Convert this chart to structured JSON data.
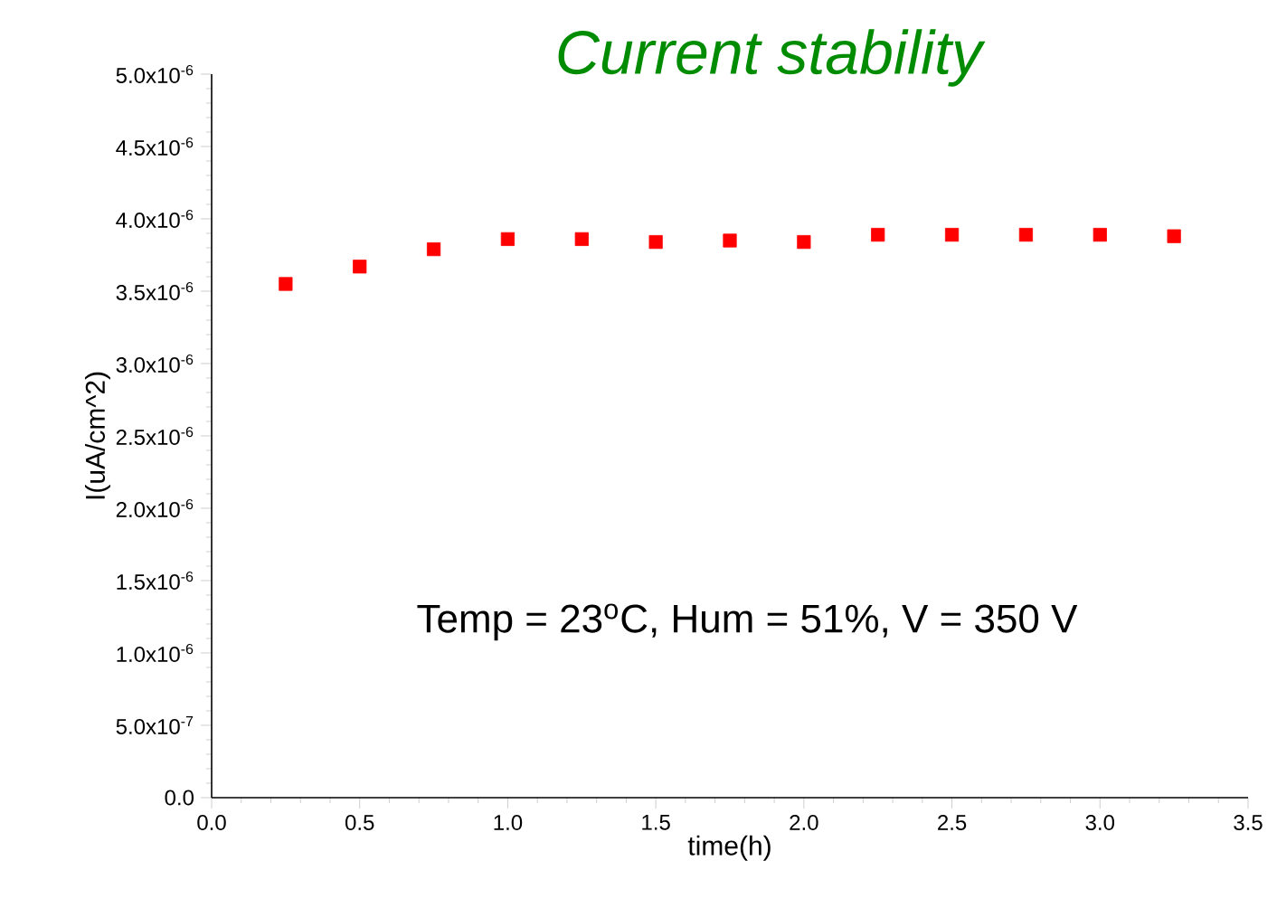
{
  "chart_data": {
    "type": "scatter",
    "title": "Current stability",
    "xlabel": "time(h)",
    "ylabel": "I(uA/cm^2)",
    "x": [
      0.25,
      0.5,
      0.75,
      1.0,
      1.25,
      1.5,
      1.75,
      2.0,
      2.25,
      2.5,
      2.75,
      3.0,
      3.25
    ],
    "series": [
      {
        "color": "#ff0000",
        "values": [
          3.55e-06,
          3.67e-06,
          3.79e-06,
          3.86e-06,
          3.86e-06,
          3.84e-06,
          3.85e-06,
          3.84e-06,
          3.89e-06,
          3.89e-06,
          3.89e-06,
          3.89e-06,
          3.88e-06
        ]
      }
    ],
    "xlim": [
      0,
      3.5
    ],
    "xticks": [
      {
        "value": 0,
        "label": "0.0"
      },
      {
        "value": 0.5,
        "label": "0.5"
      },
      {
        "value": 1,
        "label": "1.0"
      },
      {
        "value": 1.5,
        "label": "1.5"
      },
      {
        "value": 2,
        "label": "2.0"
      },
      {
        "value": 2.5,
        "label": "2.5"
      },
      {
        "value": 3,
        "label": "3.0"
      },
      {
        "value": 3.5,
        "label": "3.5"
      }
    ],
    "ylim": [
      0,
      5e-06
    ],
    "yticks": [
      {
        "value": 0,
        "label": "0.0"
      },
      {
        "value": 5e-07,
        "label": "5.0x10$^{-7}$"
      },
      {
        "value": 1e-06,
        "label": "1.0x10$^{-6}$"
      },
      {
        "value": 1.5e-06,
        "label": "1.5x10$^{-6}$"
      },
      {
        "value": 2e-06,
        "label": "2.0x10$^{-6}$"
      },
      {
        "value": 2.5e-06,
        "label": "2.5x10$^{-6}$"
      },
      {
        "value": 3e-06,
        "label": "3.0x10$^{-6}$"
      },
      {
        "value": 3.5e-06,
        "label": "3.5x10$^{-6}$"
      },
      {
        "value": 4e-06,
        "label": "4.0x10$^{-6}$"
      },
      {
        "value": 4.5e-06,
        "label": "4.5x10$^{-6}$"
      },
      {
        "value": 5e-06,
        "label": "5.0x10$^{-6}$"
      }
    ],
    "annotations": [
      "Temp = 23$^{o}$C, Hum = 51%, V = 350 V"
    ],
    "marker": "square"
  }
}
